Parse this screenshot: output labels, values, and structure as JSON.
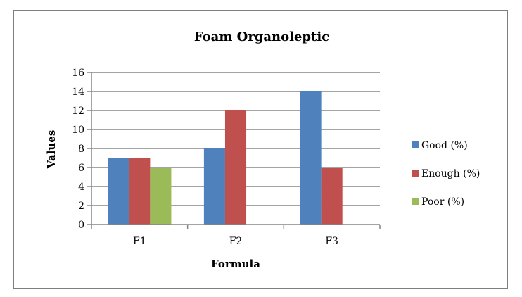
{
  "chart_data": {
    "type": "bar",
    "title": "Foam Organoleptic",
    "xlabel": "Formula",
    "ylabel": "Values",
    "categories": [
      "F1",
      "F2",
      "F3"
    ],
    "series": [
      {
        "name": "Good (%)",
        "values": [
          7,
          8,
          14
        ],
        "color": "#4f81bd"
      },
      {
        "name": "Enough (%)",
        "values": [
          7,
          12,
          6
        ],
        "color": "#c0504d"
      },
      {
        "name": "Poor (%)",
        "values": [
          6,
          0,
          0
        ],
        "color": "#9bbb59"
      }
    ],
    "ylim": [
      0,
      16
    ],
    "yticks": [
      0,
      2,
      4,
      6,
      8,
      10,
      12,
      14,
      16
    ],
    "grid": true,
    "legend_position": "right"
  }
}
